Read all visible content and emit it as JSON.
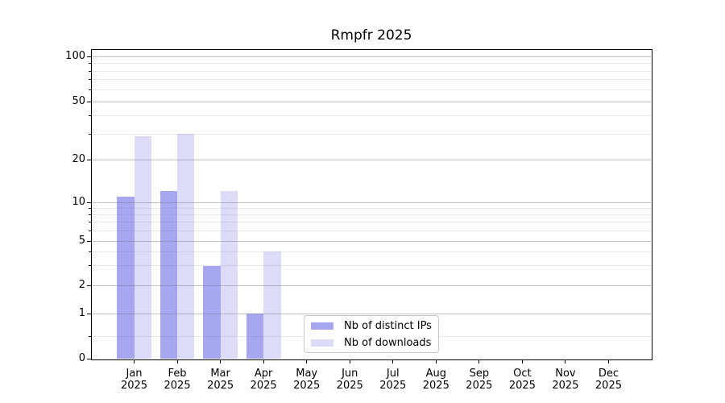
{
  "title": "Rmpfr 2025",
  "colors": {
    "distinct_ips": "#a6a6f1",
    "downloads": "#dcdcf9",
    "spine": "#000000",
    "legend_border": "#c8c8c8"
  },
  "legend": {
    "items": [
      {
        "label": "Nb of distinct IPs"
      },
      {
        "label": "Nb of downloads"
      }
    ]
  },
  "chart_data": {
    "type": "bar",
    "title": "Rmpfr 2025",
    "categories": [
      "Jan",
      "Feb",
      "Mar",
      "Apr",
      "May",
      "Jun",
      "Jul",
      "Aug",
      "Sep",
      "Oct",
      "Nov",
      "Dec"
    ],
    "year_label": "2025",
    "series": [
      {
        "name": "Nb of distinct IPs",
        "color": "#a6a6f1",
        "values": [
          11,
          12,
          3,
          1,
          0,
          0,
          0,
          0,
          0,
          0,
          0,
          0
        ]
      },
      {
        "name": "Nb of downloads",
        "color": "#dcdcf9",
        "values": [
          29,
          30,
          12,
          4,
          0,
          0,
          0,
          0,
          0,
          0,
          0,
          0
        ]
      }
    ],
    "xlabel": "",
    "ylabel": "",
    "yscale": "symlog",
    "ylim": [
      0,
      112
    ],
    "y_major_ticks": [
      0,
      1,
      2,
      5,
      10,
      20,
      50,
      100
    ],
    "y_minor_ticks": [
      0.5,
      3,
      4,
      6,
      7,
      8,
      9,
      30,
      40,
      60,
      70,
      80,
      90
    ],
    "grid": "both, drawn above bars",
    "legend_position": "lower center"
  }
}
